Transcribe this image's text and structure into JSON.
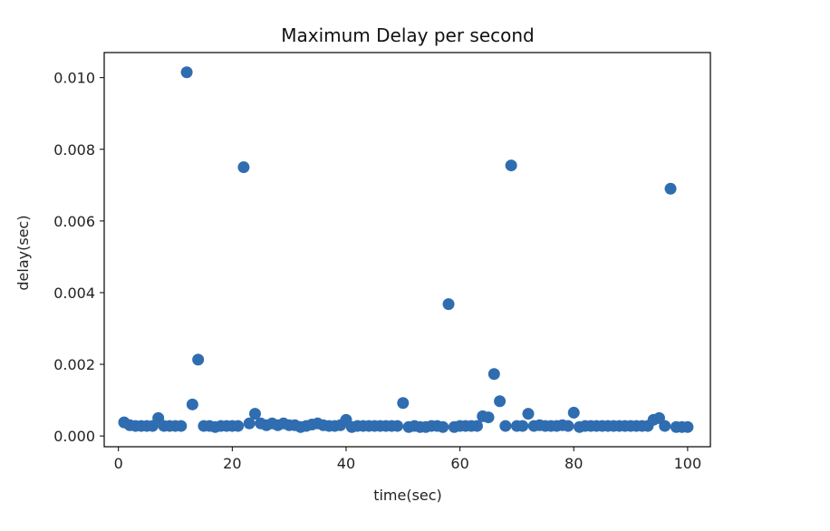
{
  "chart_data": {
    "type": "scatter",
    "title": "Maximum Delay per second",
    "xlabel": "time(sec)",
    "ylabel": "delay(sec)",
    "xlim": [
      -2.5,
      104
    ],
    "ylim": [
      -0.0003,
      0.0107
    ],
    "xticks": [
      0,
      20,
      40,
      60,
      80,
      100
    ],
    "xtick_labels": [
      "0",
      "20",
      "40",
      "60",
      "80",
      "100"
    ],
    "yticks": [
      0.0,
      0.002,
      0.004,
      0.006,
      0.008,
      0.01
    ],
    "ytick_labels": [
      "0.000",
      "0.002",
      "0.004",
      "0.006",
      "0.008",
      "0.010"
    ],
    "grid": false,
    "marker_color": "#2f6db0",
    "points": {
      "x": [
        1,
        2,
        3,
        4,
        5,
        6,
        7,
        8,
        9,
        10,
        11,
        12,
        13,
        14,
        15,
        16,
        17,
        18,
        19,
        20,
        21,
        22,
        23,
        24,
        25,
        26,
        27,
        28,
        29,
        30,
        31,
        32,
        33,
        34,
        35,
        36,
        37,
        38,
        39,
        40,
        41,
        42,
        43,
        44,
        45,
        46,
        47,
        48,
        49,
        50,
        51,
        52,
        53,
        54,
        55,
        56,
        57,
        58,
        59,
        60,
        61,
        62,
        63,
        64,
        65,
        66,
        67,
        68,
        69,
        70,
        71,
        72,
        73,
        74,
        75,
        76,
        77,
        78,
        79,
        80,
        81,
        82,
        83,
        84,
        85,
        86,
        87,
        88,
        89,
        90,
        91,
        92,
        93,
        94,
        95,
        96,
        97,
        98,
        99,
        100
      ],
      "y": [
        0.00038,
        0.0003,
        0.00028,
        0.00028,
        0.00028,
        0.00028,
        0.0005,
        0.00028,
        0.00028,
        0.00028,
        0.00028,
        0.01015,
        0.00088,
        0.00213,
        0.00028,
        0.00028,
        0.00025,
        0.00028,
        0.00028,
        0.00028,
        0.00028,
        0.0075,
        0.00035,
        0.00062,
        0.00035,
        0.0003,
        0.00035,
        0.0003,
        0.00035,
        0.0003,
        0.0003,
        0.00025,
        0.00028,
        0.00032,
        0.00035,
        0.0003,
        0.00028,
        0.00028,
        0.0003,
        0.00045,
        0.00025,
        0.00028,
        0.00028,
        0.00028,
        0.00028,
        0.00028,
        0.00028,
        0.00028,
        0.00028,
        0.00092,
        0.00025,
        0.00028,
        0.00025,
        0.00025,
        0.00028,
        0.00028,
        0.00025,
        0.00368,
        0.00025,
        0.00028,
        0.00028,
        0.00028,
        0.00028,
        0.00055,
        0.00052,
        0.00173,
        0.00097,
        0.00028,
        0.00755,
        0.00028,
        0.00028,
        0.00062,
        0.00028,
        0.0003,
        0.00028,
        0.00028,
        0.00028,
        0.0003,
        0.00028,
        0.00065,
        0.00025,
        0.00028,
        0.00028,
        0.00028,
        0.00028,
        0.00028,
        0.00028,
        0.00028,
        0.00028,
        0.00028,
        0.00028,
        0.00028,
        0.00028,
        0.00045,
        0.0005,
        0.00028,
        0.0069,
        0.00025,
        0.00025,
        0.00025
      ]
    }
  }
}
